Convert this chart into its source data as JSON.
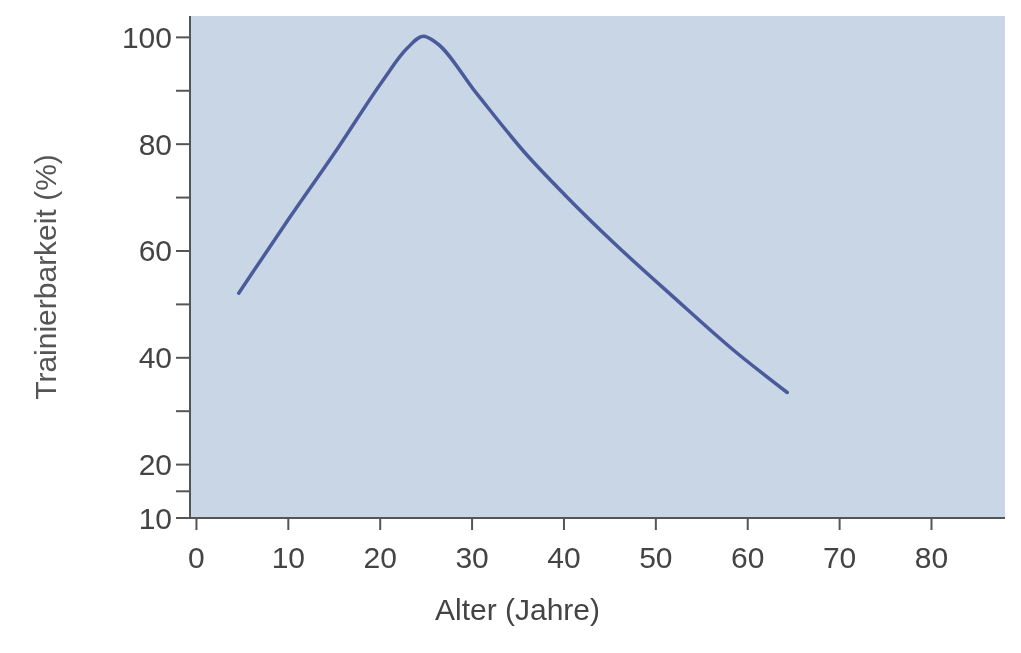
{
  "chart_data": {
    "type": "line",
    "xlabel": "Alter (Jahre)",
    "ylabel": "Trainierbarkeit (%)",
    "x": [
      4.6,
      10,
      15.4,
      20.2,
      22.9,
      24.7,
      26.1,
      30.4,
      35.8,
      40.1,
      45.5,
      51.9,
      58.4,
      64.3
    ],
    "series": [
      {
        "color": "#4a5a9a",
        "values": [
          52.1,
          65.9,
          79.3,
          91.7,
          97.9,
          100.2,
          99,
          89.7,
          78.3,
          70.5,
          61.4,
          51.4,
          41.5,
          33.5
        ]
      }
    ],
    "xlim": [
      -0.7,
      88
    ],
    "xticks": [
      0,
      10,
      20,
      30,
      40,
      50,
      60,
      70,
      80
    ],
    "ylim": [
      10,
      104
    ],
    "yticks": [
      10,
      {
        "value": 15,
        "label": null
      },
      20,
      {
        "value": 30,
        "label": null
      },
      40,
      {
        "value": 50,
        "label": null
      },
      60,
      {
        "value": 70,
        "label": null
      },
      80,
      {
        "value": 90,
        "label": null
      },
      100
    ],
    "grid": false,
    "marker": "none",
    "line_style": "solid"
  }
}
